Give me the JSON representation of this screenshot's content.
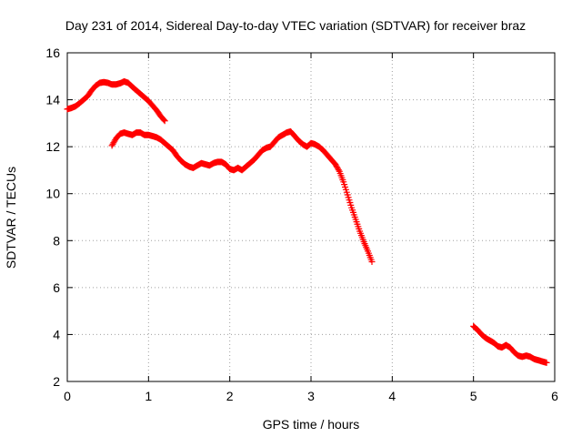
{
  "chart_data": {
    "type": "scatter",
    "title": "Day 231 of 2014, Sidereal Day-to-day VTEC variation (SDTVAR) for receiver braz",
    "xlabel": "GPS time / hours",
    "ylabel": "SDTVAR / TECUs",
    "xlim": [
      0,
      6
    ],
    "ylim": [
      2,
      16
    ],
    "xticks": [
      0,
      1,
      2,
      3,
      4,
      5,
      6
    ],
    "yticks": [
      2,
      4,
      6,
      8,
      10,
      12,
      14,
      16
    ],
    "grid": true,
    "legend": "none",
    "marker": "+",
    "series": [
      {
        "name": "segment-1",
        "color": "#ff0000",
        "x": [
          0.0,
          0.05,
          0.1,
          0.15,
          0.2,
          0.25,
          0.3,
          0.35,
          0.4,
          0.45,
          0.5,
          0.55,
          0.6,
          0.65,
          0.7,
          0.75,
          0.8,
          0.85,
          0.9,
          0.95,
          1.0,
          1.05,
          1.1,
          1.15,
          1.2
        ],
        "y": [
          13.6,
          13.65,
          13.72,
          13.85,
          14.0,
          14.15,
          14.4,
          14.6,
          14.72,
          14.75,
          14.72,
          14.65,
          14.65,
          14.7,
          14.78,
          14.72,
          14.55,
          14.4,
          14.25,
          14.1,
          13.95,
          13.75,
          13.55,
          13.3,
          13.1
        ]
      },
      {
        "name": "segment-2",
        "color": "#ff0000",
        "x": [
          0.55,
          0.6,
          0.65,
          0.7,
          0.75,
          0.8,
          0.85,
          0.9,
          0.95,
          1.0,
          1.05,
          1.1,
          1.15,
          1.2,
          1.25,
          1.3,
          1.35,
          1.4,
          1.45,
          1.5,
          1.55,
          1.6,
          1.65,
          1.7,
          1.75,
          1.8,
          1.85,
          1.9,
          1.95,
          2.0,
          2.05,
          2.1,
          2.15,
          2.2,
          2.25,
          2.3,
          2.35,
          2.4,
          2.45,
          2.5,
          2.55,
          2.6,
          2.65,
          2.7,
          2.75,
          2.8,
          2.85,
          2.9,
          2.95,
          3.0,
          3.05,
          3.1,
          3.15,
          3.2,
          3.25,
          3.3,
          3.35,
          3.4,
          3.45,
          3.5,
          3.55,
          3.6,
          3.65,
          3.7,
          3.75
        ],
        "y": [
          12.05,
          12.35,
          12.55,
          12.6,
          12.55,
          12.5,
          12.6,
          12.6,
          12.5,
          12.5,
          12.45,
          12.4,
          12.3,
          12.15,
          12.0,
          11.85,
          11.6,
          11.4,
          11.25,
          11.15,
          11.1,
          11.2,
          11.3,
          11.25,
          11.2,
          11.3,
          11.35,
          11.35,
          11.25,
          11.05,
          11.0,
          11.1,
          11.0,
          11.15,
          11.3,
          11.45,
          11.65,
          11.85,
          11.95,
          12.0,
          12.2,
          12.4,
          12.5,
          12.6,
          12.65,
          12.45,
          12.25,
          12.1,
          12.0,
          12.15,
          12.1,
          12.0,
          11.85,
          11.65,
          11.45,
          11.25,
          10.95,
          10.5,
          9.95,
          9.4,
          8.9,
          8.4,
          7.95,
          7.55,
          7.1
        ]
      },
      {
        "name": "segment-3",
        "color": "#ff0000",
        "x": [
          5.0,
          5.05,
          5.1,
          5.15,
          5.2,
          5.25,
          5.3,
          5.35,
          5.4,
          5.45,
          5.5,
          5.55,
          5.6,
          5.65,
          5.7,
          5.75,
          5.8,
          5.85,
          5.9
        ],
        "y": [
          4.35,
          4.2,
          4.0,
          3.85,
          3.75,
          3.65,
          3.5,
          3.45,
          3.55,
          3.45,
          3.25,
          3.1,
          3.05,
          3.1,
          3.05,
          2.95,
          2.9,
          2.85,
          2.8
        ]
      }
    ]
  }
}
